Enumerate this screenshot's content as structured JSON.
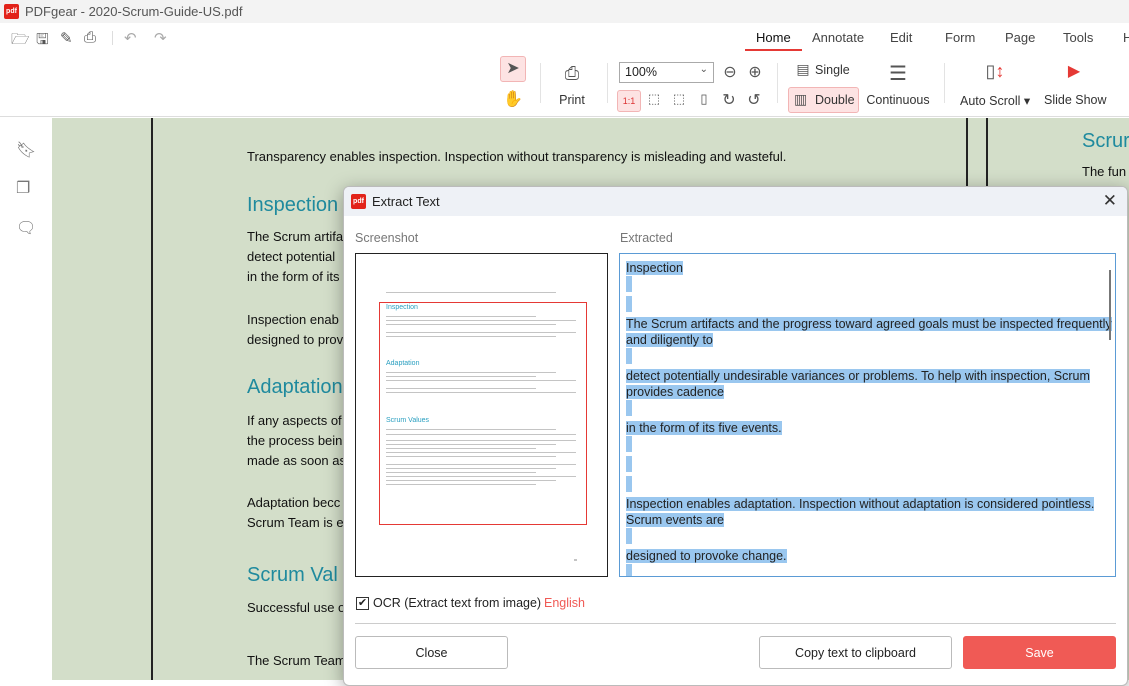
{
  "window": {
    "title": "PDFgear - 2020-Scrum-Guide-US.pdf",
    "logo": "PDFgear"
  },
  "quick_access": [
    "open-icon",
    "save-icon",
    "save-as-icon",
    "print-icon",
    "undo-icon",
    "redo-icon"
  ],
  "tabs": [
    {
      "label": "Home",
      "active": true
    },
    {
      "label": "Annotate"
    },
    {
      "label": "Edit"
    },
    {
      "label": "Form"
    },
    {
      "label": "Page"
    },
    {
      "label": "Tools"
    },
    {
      "label": "H"
    }
  ],
  "ribbon": {
    "print": "Print",
    "zoom": "100%",
    "single": "Single",
    "double": "Double",
    "continuous": "Continuous",
    "auto_scroll": "Auto Scroll",
    "slide_show": "Slide Show",
    "accent": "#e53935"
  },
  "doc": {
    "lines": [
      "Transparency enables inspection. Inspection without transparency is misleading and wasteful.",
      "The Scrum artifa",
      "detect potential",
      "in the form of its",
      "Inspection enab",
      "designed to prov",
      "If any aspects of",
      "the process bein",
      "made as soon as",
      "Adaptation becc",
      "Scrum Team is e",
      "Successful use o",
      "The Scrum Team"
    ],
    "headings": [
      "Inspection",
      "Adaptation",
      "Scrum Val"
    ],
    "right_heading": "Scrur",
    "right_line": "The fun",
    "background": "#d3dec9",
    "heading_color": "#1f8a9e"
  },
  "dialog": {
    "title": "Extract Text",
    "screenshot_label": "Screenshot",
    "extracted_label": "Extracted",
    "thumbnail_headings": [
      "Inspection",
      "Adaptation",
      "Scrum Values"
    ],
    "extracted_lines": [
      "Inspection",
      "",
      "",
      "The Scrum artifacts and the progress toward agreed goals must be inspected frequently",
      "and diligently to",
      "",
      "detect potentially undesirable variances or problems. To help with inspection, Scrum",
      "provides cadence",
      "",
      "in the form of its five events.",
      "",
      "",
      "",
      "Inspection enables adaptation. Inspection without adaptation is considered pointless.",
      "Scrum events are",
      "",
      "designed to provoke change.",
      ""
    ],
    "ocr_label": "OCR (Extract text from image)",
    "ocr_checked": true,
    "language": "English",
    "close": "Close",
    "copy": "Copy text to clipboard",
    "save": "Save",
    "save_color": "#f05a55",
    "highlight_color": "#9ac7ef"
  }
}
